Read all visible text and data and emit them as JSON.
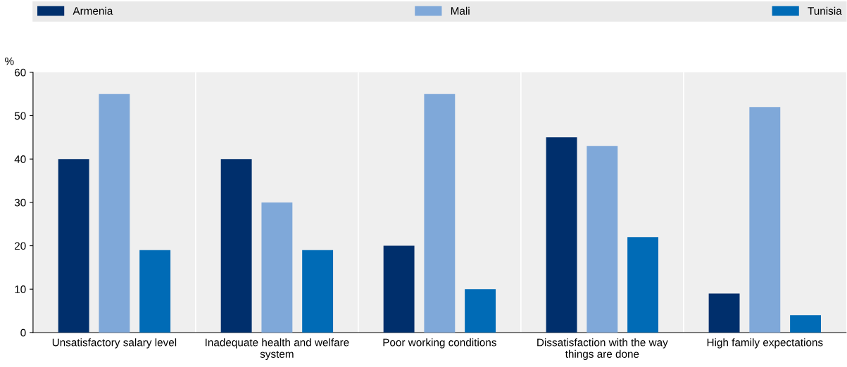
{
  "chart_data": {
    "type": "bar",
    "ylabel": "%",
    "categories": [
      "Unsatisfactory salary level",
      "Inadequate health and welfare system",
      "Poor working conditions",
      "Dissatisfaction with the way things are done",
      "High family expectations"
    ],
    "series": [
      {
        "name": "Armenia",
        "color": "#002f6c",
        "values": [
          40,
          40,
          20,
          45,
          9
        ]
      },
      {
        "name": "Mali",
        "color": "#7fa8d9",
        "values": [
          55,
          30,
          55,
          43,
          52
        ]
      },
      {
        "name": "Tunisia",
        "color": "#006bb6",
        "values": [
          19,
          19,
          10,
          22,
          4
        ]
      }
    ],
    "ylim": [
      0,
      60
    ],
    "yticks": [
      0,
      10,
      20,
      30,
      40,
      50,
      60
    ],
    "grid": false,
    "legend": "top"
  }
}
